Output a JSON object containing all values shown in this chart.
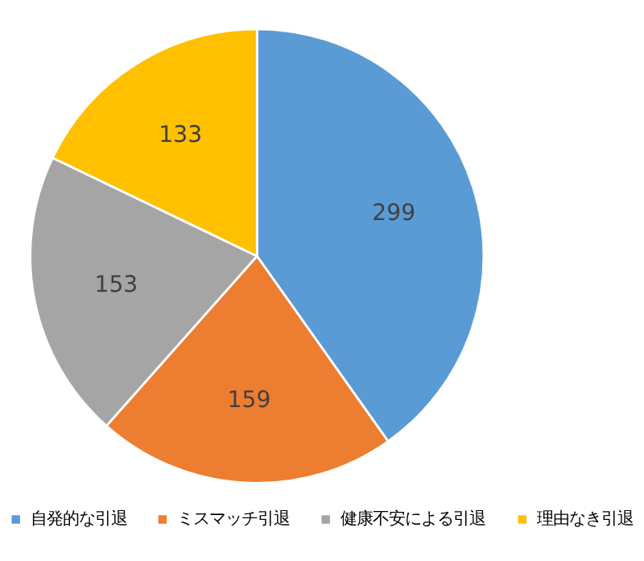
{
  "chart_data": {
    "type": "pie",
    "categories": [
      "自発的な引退",
      "ミスマッチ引退",
      "健康不安による引退",
      "理由なき引退"
    ],
    "values": [
      299,
      159,
      153,
      133
    ],
    "colors": [
      "#5b9bd5",
      "#ed7d31",
      "#a5a5a5",
      "#ffc000"
    ],
    "data_labels": true,
    "legend": "bottom"
  }
}
